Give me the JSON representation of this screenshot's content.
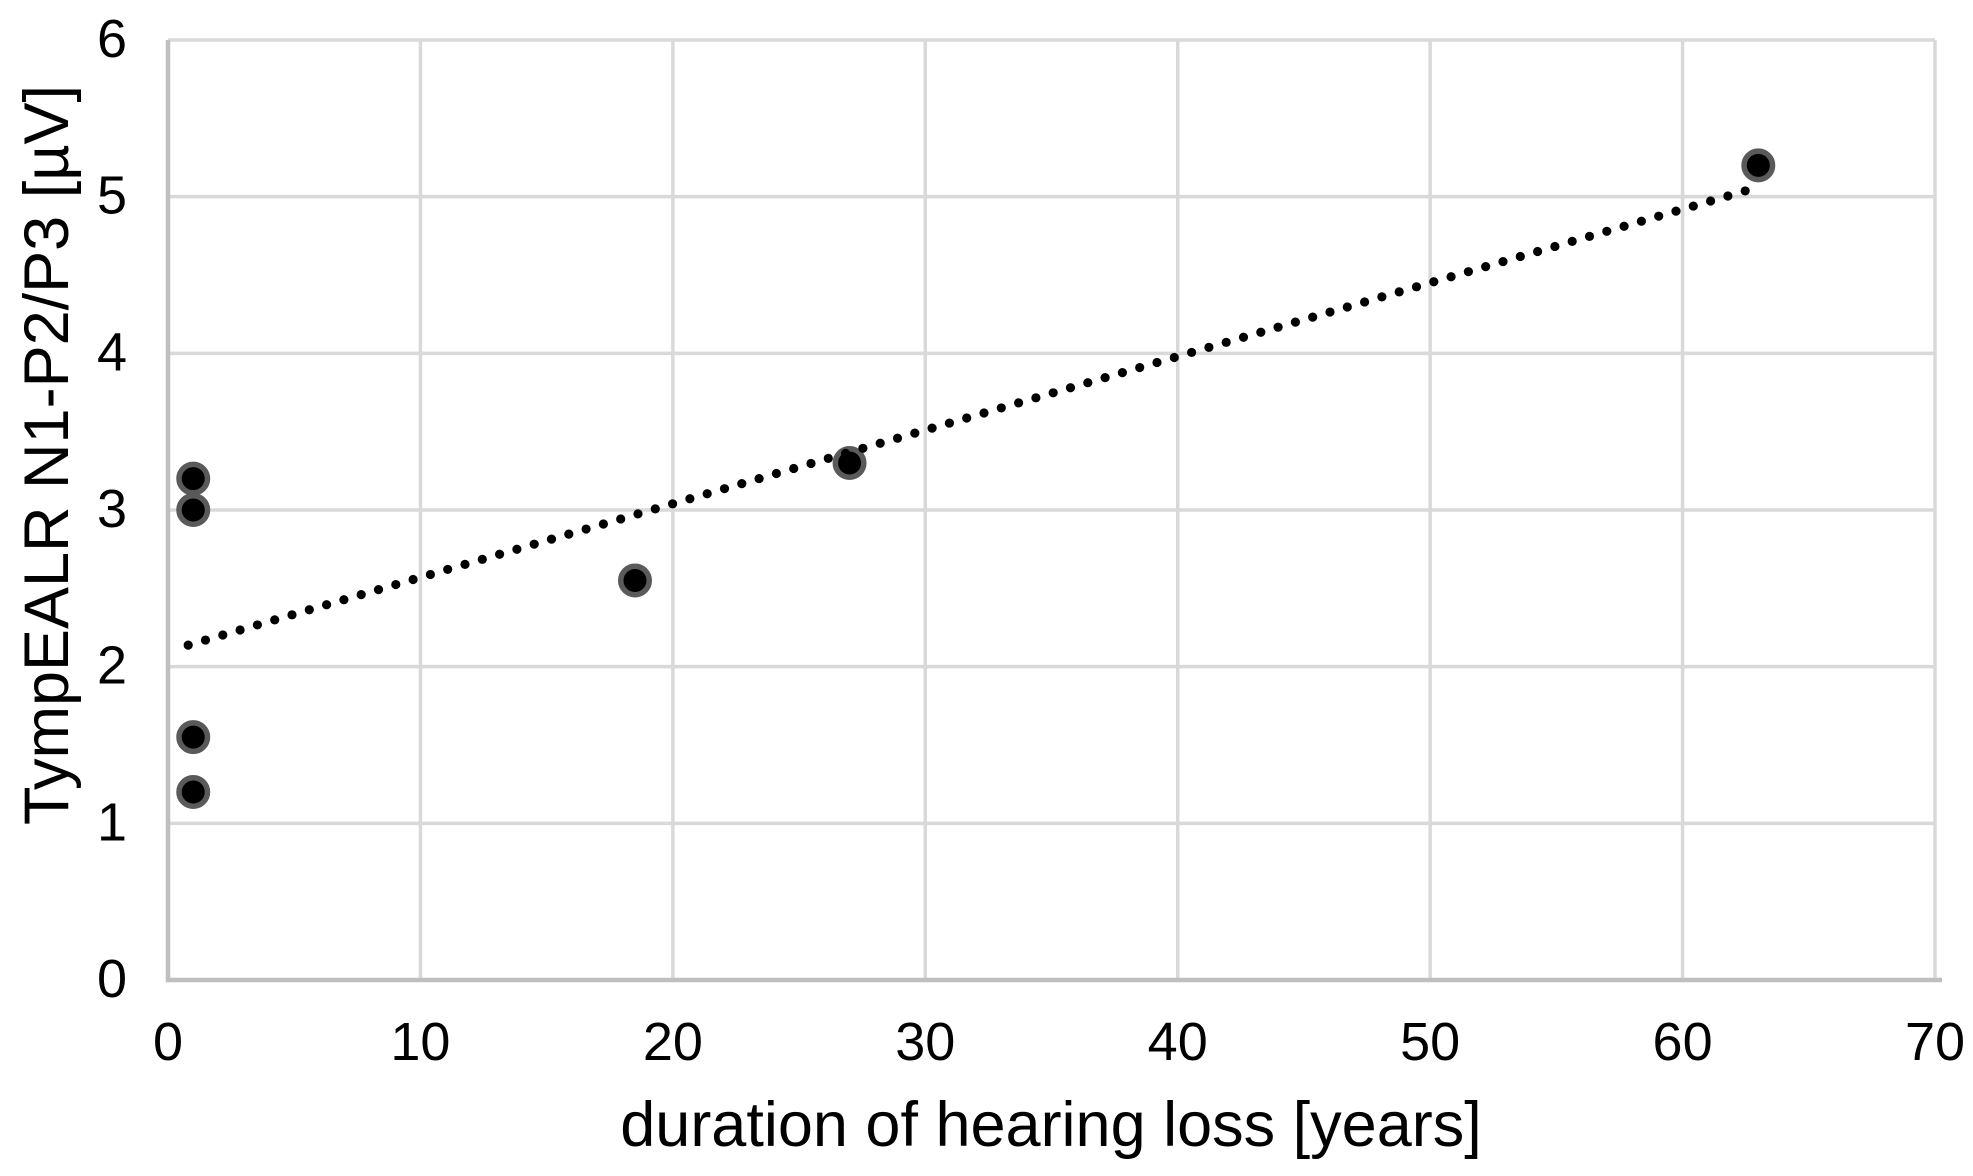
{
  "chart_data": {
    "type": "scatter",
    "title": "",
    "xlabel": "duration of hearing loss [years]",
    "ylabel": "TympEALR N1-P2/P3 [µV]",
    "xlim": [
      0,
      70
    ],
    "ylim": [
      0,
      6
    ],
    "x_ticks": [
      0,
      10,
      20,
      30,
      40,
      50,
      60,
      70
    ],
    "y_ticks": [
      0,
      1,
      2,
      3,
      4,
      5,
      6
    ],
    "grid": true,
    "legend": "none",
    "points": [
      {
        "x": 1,
        "y": 3.2
      },
      {
        "x": 1,
        "y": 3.0
      },
      {
        "x": 1,
        "y": 1.55
      },
      {
        "x": 1,
        "y": 1.2
      },
      {
        "x": 18.5,
        "y": 2.55
      },
      {
        "x": 27,
        "y": 3.3
      },
      {
        "x": 63,
        "y": 5.2
      }
    ],
    "trendline": {
      "style": "dotted",
      "slope": 0.047,
      "intercept": 2.1,
      "x_start": 0.8,
      "x_end": 62.9
    },
    "colors": {
      "background": "#FFFFFF",
      "gridline": "#D9D9D9",
      "axis_line": "#BFBFBF",
      "text": "#000000",
      "marker_fill": "#000000",
      "marker_ring": "#5A5A5A",
      "trend_dot": "#000000"
    }
  }
}
